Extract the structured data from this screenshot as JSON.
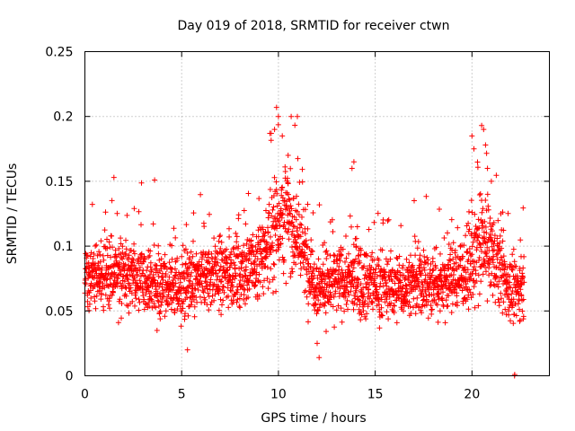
{
  "chart_data": {
    "type": "scatter",
    "title": "Day 019 of 2018, SRMTID for receiver ctwn",
    "xlabel": "GPS time / hours",
    "ylabel": "SRMTID / TECUs",
    "xlim": [
      0,
      24
    ],
    "ylim": [
      0,
      0.25
    ],
    "xticks": [
      0,
      5,
      10,
      15,
      20
    ],
    "xtick_labels": [
      "0",
      "5",
      "10",
      "15",
      "20"
    ],
    "yticks": [
      0,
      0.05,
      0.1,
      0.15,
      0.2,
      0.25
    ],
    "ytick_labels": [
      "0",
      "0.05",
      "0.1",
      "0.15",
      "0.2",
      "0.25"
    ],
    "grid": true,
    "marker": "+",
    "color": "#ff0000",
    "series": [
      {
        "name": "SRMTID",
        "description": "Dense scatter of ~3000 points, 0 to 22.7 hours; typical values 0.04-0.10 with peaks near 10 h (~0.21) and 20.5 h (~0.19); a few zero values near 22.2 h.",
        "envelope": [
          {
            "x": 0,
            "mean": 0.078,
            "spread": 0.022
          },
          {
            "x": 1,
            "mean": 0.075,
            "spread": 0.025
          },
          {
            "x": 2,
            "mean": 0.08,
            "spread": 0.028
          },
          {
            "x": 3,
            "mean": 0.072,
            "spread": 0.024
          },
          {
            "x": 4,
            "mean": 0.07,
            "spread": 0.024
          },
          {
            "x": 5,
            "mean": 0.068,
            "spread": 0.026
          },
          {
            "x": 6,
            "mean": 0.074,
            "spread": 0.026
          },
          {
            "x": 7,
            "mean": 0.08,
            "spread": 0.028
          },
          {
            "x": 8,
            "mean": 0.08,
            "spread": 0.026
          },
          {
            "x": 9,
            "mean": 0.085,
            "spread": 0.03
          },
          {
            "x": 9.5,
            "mean": 0.105,
            "spread": 0.035
          },
          {
            "x": 10,
            "mean": 0.125,
            "spread": 0.045
          },
          {
            "x": 10.5,
            "mean": 0.12,
            "spread": 0.04
          },
          {
            "x": 11,
            "mean": 0.11,
            "spread": 0.035
          },
          {
            "x": 11.5,
            "mean": 0.085,
            "spread": 0.028
          },
          {
            "x": 12,
            "mean": 0.07,
            "spread": 0.025
          },
          {
            "x": 13,
            "mean": 0.072,
            "spread": 0.026
          },
          {
            "x": 14,
            "mean": 0.075,
            "spread": 0.028
          },
          {
            "x": 15,
            "mean": 0.07,
            "spread": 0.025
          },
          {
            "x": 16,
            "mean": 0.068,
            "spread": 0.024
          },
          {
            "x": 17,
            "mean": 0.072,
            "spread": 0.026
          },
          {
            "x": 18,
            "mean": 0.07,
            "spread": 0.026
          },
          {
            "x": 19,
            "mean": 0.075,
            "spread": 0.026
          },
          {
            "x": 20,
            "mean": 0.085,
            "spread": 0.032
          },
          {
            "x": 20.5,
            "mean": 0.1,
            "spread": 0.04
          },
          {
            "x": 21,
            "mean": 0.095,
            "spread": 0.035
          },
          {
            "x": 21.5,
            "mean": 0.08,
            "spread": 0.03
          },
          {
            "x": 22,
            "mean": 0.065,
            "spread": 0.024
          },
          {
            "x": 22.7,
            "mean": 0.068,
            "spread": 0.022
          }
        ],
        "peaks": [
          {
            "x": 9.9,
            "y": 0.207
          },
          {
            "x": 10.0,
            "y": 0.2
          },
          {
            "x": 9.8,
            "y": 0.19
          },
          {
            "x": 10.2,
            "y": 0.185
          },
          {
            "x": 10.5,
            "y": 0.17
          },
          {
            "x": 1.5,
            "y": 0.153
          },
          {
            "x": 3.6,
            "y": 0.151
          },
          {
            "x": 13.9,
            "y": 0.165
          },
          {
            "x": 13.8,
            "y": 0.16
          },
          {
            "x": 20.0,
            "y": 0.185
          },
          {
            "x": 20.1,
            "y": 0.175
          },
          {
            "x": 20.5,
            "y": 0.193
          },
          {
            "x": 20.6,
            "y": 0.19
          },
          {
            "x": 20.7,
            "y": 0.178
          },
          {
            "x": 20.8,
            "y": 0.16
          },
          {
            "x": 21.0,
            "y": 0.15
          },
          {
            "x": 12.1,
            "y": 0.014
          },
          {
            "x": 12.0,
            "y": 0.025
          },
          {
            "x": 5.3,
            "y": 0.02
          },
          {
            "x": 22.2,
            "y": 0.0
          },
          {
            "x": 22.21,
            "y": 0.001
          }
        ]
      }
    ]
  }
}
